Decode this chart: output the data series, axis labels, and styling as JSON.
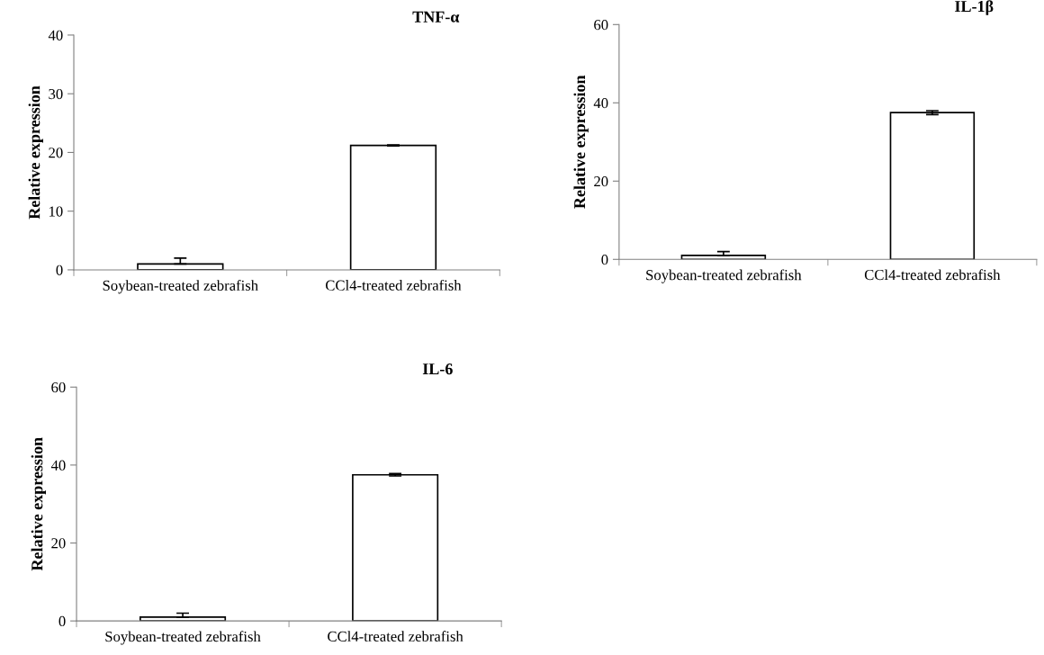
{
  "chart_data": [
    {
      "type": "bar",
      "title": "TNF-α",
      "ylabel": "Relative expression",
      "categories": [
        "Soybean-treated zebrafish",
        "CCl4-treated zebrafish"
      ],
      "values": [
        1,
        21.2
      ],
      "errors": [
        [
          1,
          2
        ],
        0.1
      ],
      "color": "#ffffff",
      "ylim": [
        0,
        40
      ],
      "yticks": [
        0,
        10,
        20,
        30,
        40
      ],
      "grid": false,
      "legend": false
    },
    {
      "type": "bar",
      "title": "IL-1β",
      "ylabel": "Relative expression",
      "categories": [
        "Soybean-treated zebrafish",
        "CCl4-treated zebrafish"
      ],
      "values": [
        1,
        37.5
      ],
      "errors": [
        [
          1,
          2
        ],
        0.5
      ],
      "color": "#ffffff",
      "ylim": [
        0,
        60
      ],
      "yticks": [
        0,
        20,
        40,
        60
      ],
      "grid": false,
      "legend": false
    },
    {
      "type": "bar",
      "title": "IL-6",
      "ylabel": "Relative expression",
      "categories": [
        "Soybean-treated zebrafish",
        "CCl4-treated zebrafish"
      ],
      "values": [
        1,
        37.5
      ],
      "errors": [
        [
          1,
          2
        ],
        0.3
      ],
      "color": "#ffffff",
      "ylim": [
        0,
        60
      ],
      "yticks": [
        0,
        20,
        40,
        60
      ],
      "grid": false,
      "legend": false
    }
  ]
}
